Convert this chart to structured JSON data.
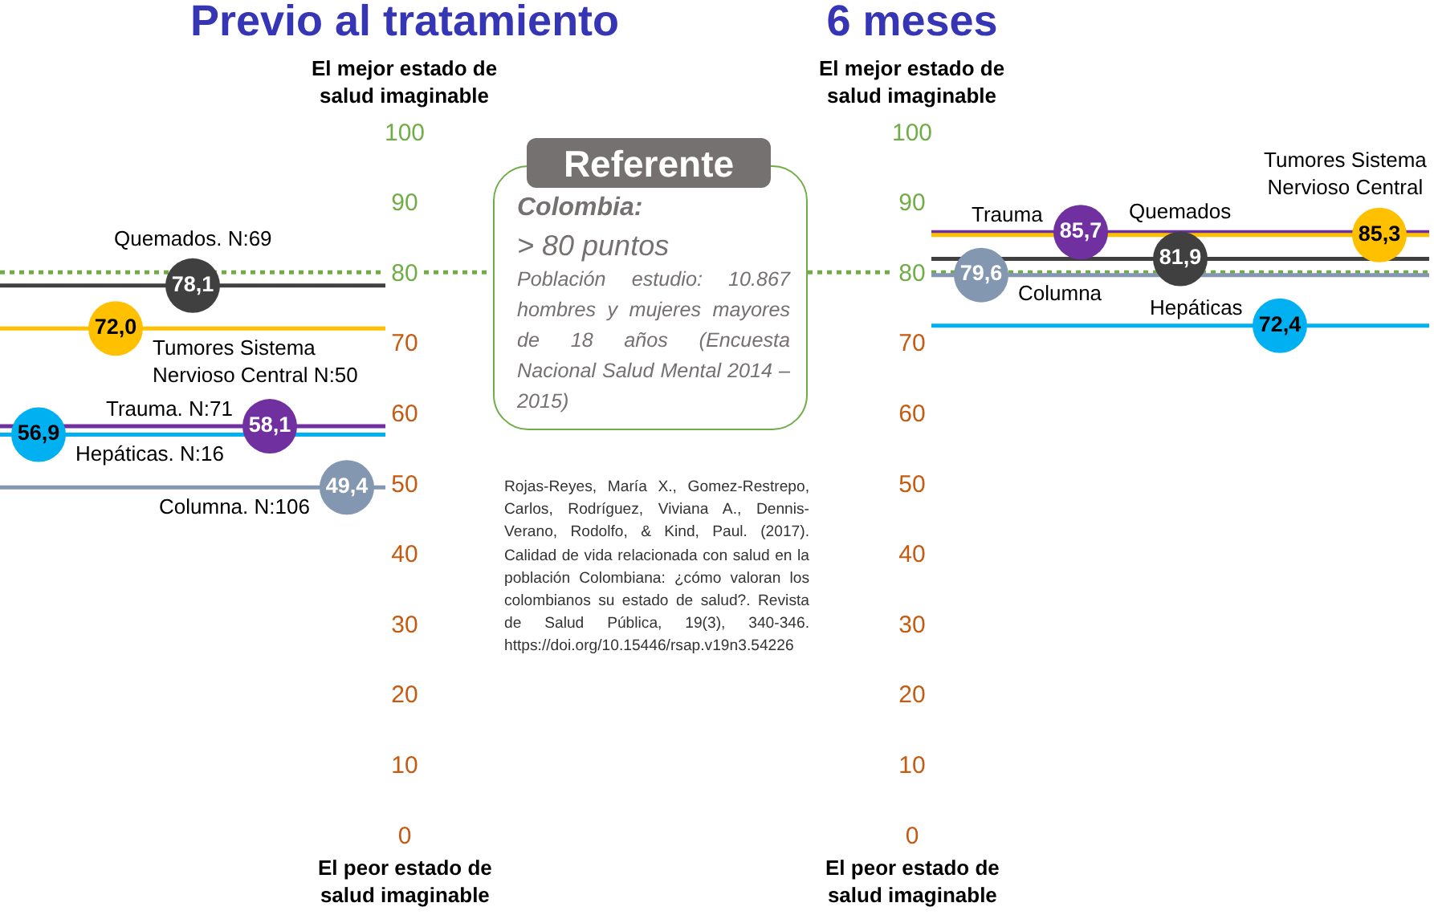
{
  "chart_data": [
    {
      "type": "scatter",
      "title": "Previo al tratamiento",
      "categories": [
        null,
        null,
        null,
        null,
        null
      ],
      "ylim": [
        0,
        100
      ],
      "yticks": [
        0,
        10,
        20,
        30,
        40,
        50,
        60,
        70,
        80,
        90,
        100
      ],
      "tick_labels": "y",
      "marker": "circle",
      "series": [
        {
          "name": "Hepáticas. N:16",
          "color": "#00b0f0",
          "values": [
            56.9,
            null,
            null,
            null,
            null
          ],
          "value_labels": [
            "56,9",
            null,
            null,
            null,
            null
          ]
        },
        {
          "name": "Tumores Sistema Nervioso Central N:50",
          "color": "#ffc000",
          "values": [
            null,
            72.0,
            null,
            null,
            null
          ],
          "value_labels": [
            null,
            "72,0",
            null,
            null,
            null
          ]
        },
        {
          "name": "Quemados. N:69",
          "color": "#404040",
          "values": [
            null,
            null,
            78.1,
            null,
            null
          ],
          "value_labels": [
            null,
            null,
            "78,1",
            null,
            null
          ]
        },
        {
          "name": "Trauma. N:71",
          "color": "#7030a0",
          "values": [
            null,
            null,
            null,
            58.1,
            null
          ],
          "value_labels": [
            null,
            null,
            null,
            "58,1",
            null
          ]
        },
        {
          "name": "Columna. N:106",
          "color": "#8497b0",
          "values": [
            null,
            null,
            null,
            null,
            49.4
          ],
          "value_labels": [
            null,
            null,
            null,
            null,
            "49,4"
          ]
        }
      ],
      "ref_lines": [
        {
          "axis": "y",
          "value": 80,
          "color": "#70ad47",
          "line_style": "dotted"
        },
        {
          "axis": "y",
          "value": 56.9,
          "color": "#00b0f0"
        },
        {
          "axis": "y",
          "value": 72.0,
          "color": "#ffc000"
        },
        {
          "axis": "y",
          "value": 78.1,
          "color": "#404040"
        },
        {
          "axis": "y",
          "value": 58.1,
          "color": "#7030a0"
        },
        {
          "axis": "y",
          "value": 49.4,
          "color": "#8497b0"
        }
      ],
      "annotations": [
        "El mejor estado de salud imaginable",
        "El peor estado de salud imaginable"
      ]
    },
    {
      "type": "other",
      "title": "Referente",
      "annotations": [
        "Colombia:",
        "> 80 puntos",
        "Población estudio: 10.867 hombres y mujeres mayores de 18 años (Encuesta Nacional Salud Mental 2014 – 2015)",
        "Rojas-Reyes, María X., Gomez-Restrepo, Carlos, Rodríguez, Viviana A., Dennis-Verano, Rodolfo, & Kind, Paul. (2017). Calidad de vida relacionada con salud en la población Colombiana: ¿cómo valoran los colombianos su estado de salud?. Revista de Salud Pública, 19(3), 340-346. https://doi.org/10.15446/rsap.v19n3.54226"
      ]
    },
    {
      "type": "scatter",
      "title": "6 meses",
      "categories": [
        null,
        null,
        null,
        null,
        null
      ],
      "ylim": [
        0,
        100
      ],
      "yticks": [
        0,
        10,
        20,
        30,
        40,
        50,
        60,
        70,
        80,
        90,
        100
      ],
      "tick_labels": "y",
      "marker": "circle",
      "series": [
        {
          "name": "Columna",
          "color": "#8497b0",
          "values": [
            79.6,
            null,
            null,
            null,
            null
          ],
          "value_labels": [
            "79,6",
            null,
            null,
            null,
            null
          ]
        },
        {
          "name": "Trauma",
          "color": "#7030a0",
          "values": [
            null,
            85.7,
            null,
            null,
            null
          ],
          "value_labels": [
            null,
            "85,7",
            null,
            null,
            null
          ]
        },
        {
          "name": "Quemados",
          "color": "#404040",
          "values": [
            null,
            null,
            81.9,
            null,
            null
          ],
          "value_labels": [
            null,
            null,
            "81,9",
            null,
            null
          ]
        },
        {
          "name": "Hepáticas",
          "color": "#00b0f0",
          "values": [
            null,
            null,
            null,
            72.4,
            null
          ],
          "value_labels": [
            null,
            null,
            null,
            "72,4",
            null
          ]
        },
        {
          "name": "Tumores Sistema Nervioso Central",
          "color": "#ffc000",
          "values": [
            null,
            null,
            null,
            null,
            85.3
          ],
          "value_labels": [
            null,
            null,
            null,
            null,
            "85,3"
          ]
        }
      ],
      "ref_lines": [
        {
          "axis": "y",
          "value": 80,
          "color": "#70ad47",
          "line_style": "dotted"
        },
        {
          "axis": "y",
          "value": 79.6,
          "color": "#8497b0"
        },
        {
          "axis": "y",
          "value": 85.7,
          "color": "#7030a0"
        },
        {
          "axis": "y",
          "value": 81.9,
          "color": "#404040"
        },
        {
          "axis": "y",
          "value": 72.4,
          "color": "#00b0f0"
        },
        {
          "axis": "y",
          "value": 85.3,
          "color": "#ffc000"
        }
      ],
      "annotations": [
        "El mejor estado de salud imaginable",
        "El peor estado de salud imaginable"
      ]
    }
  ]
}
